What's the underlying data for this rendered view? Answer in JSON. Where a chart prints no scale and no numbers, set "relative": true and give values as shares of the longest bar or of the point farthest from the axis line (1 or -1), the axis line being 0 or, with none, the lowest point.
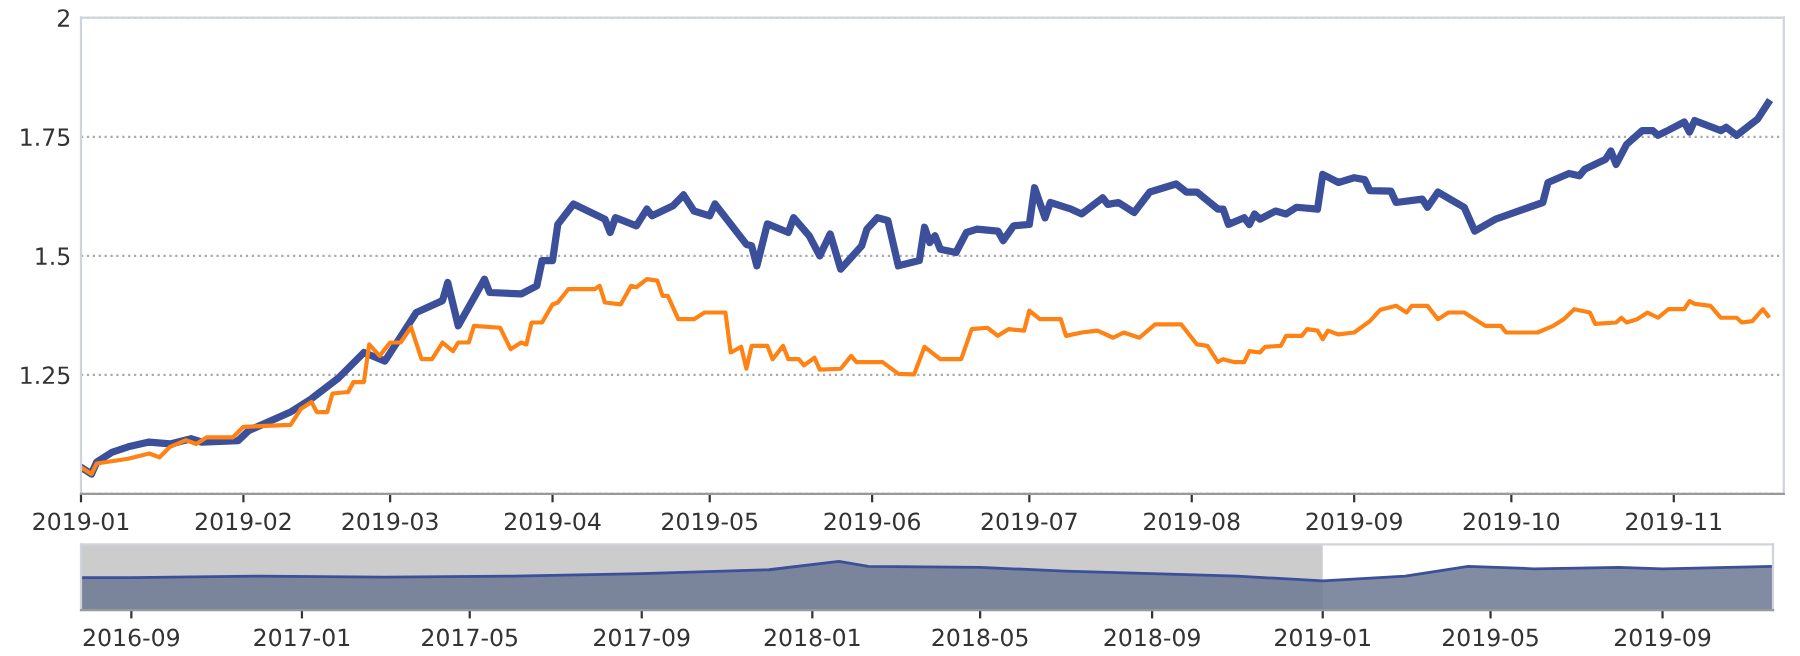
{
  "chart_data": [
    {
      "type": "line",
      "xlim": [
        "2019-01-01",
        "2019-11-22"
      ],
      "xticks": [
        "2019-01",
        "2019-02",
        "2019-03",
        "2019-04",
        "2019-05",
        "2019-06",
        "2019-07",
        "2019-08",
        "2019-09",
        "2019-10",
        "2019-11"
      ],
      "ylim": [
        1,
        2
      ],
      "yticks": [
        {
          "value": 1,
          "label": null
        },
        1.25,
        1.5,
        1.75,
        2
      ],
      "grid": "y",
      "line_style": "solid",
      "marker": "none",
      "series": [
        {
          "color": "#3c4f9a",
          "x": [
            "2019-01-01",
            "2019-01-03",
            "2019-01-04",
            "2019-01-07",
            "2019-01-10",
            "2019-01-14",
            "2019-01-18",
            "2019-01-22",
            "2019-01-24",
            "2019-01-31",
            "2019-02-02",
            "2019-02-10",
            "2019-02-14",
            "2019-02-19",
            "2019-02-24",
            "2019-02-28",
            "2019-03-06",
            "2019-03-11",
            "2019-03-12",
            "2019-03-14",
            "2019-03-19",
            "2019-03-20",
            "2019-03-26",
            "2019-03-29",
            "2019-03-30",
            "2019-04-01",
            "2019-04-02",
            "2019-04-05",
            "2019-04-11",
            "2019-04-12",
            "2019-04-13",
            "2019-04-17",
            "2019-04-19",
            "2019-04-20",
            "2019-04-24",
            "2019-04-26",
            "2019-04-28",
            "2019-05-01",
            "2019-05-02",
            "2019-05-08",
            "2019-05-09",
            "2019-05-10",
            "2019-05-12",
            "2019-05-16",
            "2019-05-17",
            "2019-05-20",
            "2019-05-22",
            "2019-05-24",
            "2019-05-26",
            "2019-05-30",
            "2019-05-31",
            "2019-06-02",
            "2019-06-04",
            "2019-06-06",
            "2019-06-10",
            "2019-06-11",
            "2019-06-12",
            "2019-06-13",
            "2019-06-14",
            "2019-06-17",
            "2019-06-19",
            "2019-06-21",
            "2019-06-25",
            "2019-06-26",
            "2019-06-28",
            "2019-07-01",
            "2019-07-02",
            "2019-07-04",
            "2019-07-05",
            "2019-07-09",
            "2019-07-11",
            "2019-07-15",
            "2019-07-16",
            "2019-07-18",
            "2019-07-21",
            "2019-07-24",
            "2019-07-29",
            "2019-07-31",
            "2019-08-02",
            "2019-08-06",
            "2019-08-07",
            "2019-08-08",
            "2019-08-11",
            "2019-08-12",
            "2019-08-13",
            "2019-08-14",
            "2019-08-17",
            "2019-08-19",
            "2019-08-21",
            "2019-08-25",
            "2019-08-26",
            "2019-08-29",
            "2019-09-01",
            "2019-09-03",
            "2019-09-04",
            "2019-09-08",
            "2019-09-09",
            "2019-09-14",
            "2019-09-15",
            "2019-09-17",
            "2019-09-22",
            "2019-09-24",
            "2019-09-28",
            "2019-10-07",
            "2019-10-08",
            "2019-10-12",
            "2019-10-14",
            "2019-10-15",
            "2019-10-19",
            "2019-10-20",
            "2019-10-21",
            "2019-10-23",
            "2019-10-26",
            "2019-10-28",
            "2019-10-29",
            "2019-10-31",
            "2019-11-03",
            "2019-11-04",
            "2019-11-05",
            "2019-11-10",
            "2019-11-11",
            "2019-11-13",
            "2019-11-17",
            "2019-11-19"
          ],
          "values": [
            1.056,
            1.042,
            1.067,
            1.088,
            1.099,
            1.109,
            1.105,
            1.116,
            1.109,
            1.112,
            1.133,
            1.172,
            1.2,
            1.242,
            1.297,
            1.279,
            1.381,
            1.406,
            1.444,
            1.353,
            1.451,
            1.423,
            1.42,
            1.437,
            1.49,
            1.49,
            1.566,
            1.609,
            1.577,
            1.549,
            1.58,
            1.563,
            1.598,
            1.584,
            1.605,
            1.628,
            1.594,
            1.584,
            1.609,
            1.524,
            1.521,
            1.479,
            1.567,
            1.549,
            1.58,
            1.542,
            1.5,
            1.546,
            1.472,
            1.521,
            1.556,
            1.58,
            1.574,
            1.479,
            1.49,
            1.56,
            1.528,
            1.542,
            1.514,
            1.507,
            1.549,
            1.556,
            1.552,
            1.532,
            1.563,
            1.566,
            1.643,
            1.58,
            1.612,
            1.598,
            1.588,
            1.622,
            1.608,
            1.612,
            1.591,
            1.634,
            1.651,
            1.634,
            1.634,
            1.598,
            1.598,
            1.566,
            1.58,
            1.566,
            1.588,
            1.577,
            1.594,
            1.588,
            1.602,
            1.598,
            1.671,
            1.654,
            1.664,
            1.66,
            1.637,
            1.636,
            1.612,
            1.619,
            1.602,
            1.634,
            1.602,
            1.552,
            1.577,
            1.612,
            1.654,
            1.673,
            1.668,
            1.682,
            1.703,
            1.72,
            1.692,
            1.734,
            1.763,
            1.763,
            1.753,
            1.764,
            1.781,
            1.76,
            1.784,
            1.763,
            1.77,
            1.753,
            1.787,
            1.821
          ]
        },
        {
          "color": "#ff8214",
          "x": [
            "2019-01-01",
            "2019-01-03",
            "2019-01-04",
            "2019-01-10",
            "2019-01-14",
            "2019-01-16",
            "2019-01-18",
            "2019-01-21",
            "2019-01-23",
            "2019-01-25",
            "2019-01-30",
            "2019-02-01",
            "2019-02-10",
            "2019-02-12",
            "2019-02-14",
            "2019-02-15",
            "2019-02-17",
            "2019-02-18",
            "2019-02-21",
            "2019-02-22",
            "2019-02-24",
            "2019-02-25",
            "2019-02-27",
            "2019-03-01",
            "2019-03-03",
            "2019-03-05",
            "2019-03-07",
            "2019-03-09",
            "2019-03-11",
            "2019-03-13",
            "2019-03-14",
            "2019-03-16",
            "2019-03-17",
            "2019-03-22",
            "2019-03-24",
            "2019-03-26",
            "2019-03-27",
            "2019-03-28",
            "2019-03-30",
            "2019-04-01",
            "2019-04-02",
            "2019-04-04",
            "2019-04-09",
            "2019-04-10",
            "2019-04-11",
            "2019-04-14",
            "2019-04-16",
            "2019-04-17",
            "2019-04-19",
            "2019-04-21",
            "2019-04-22",
            "2019-04-23",
            "2019-04-25",
            "2019-04-28",
            "2019-04-30",
            "2019-05-04",
            "2019-05-05",
            "2019-05-07",
            "2019-05-08",
            "2019-05-09",
            "2019-05-12",
            "2019-05-13",
            "2019-05-15",
            "2019-05-16",
            "2019-05-18",
            "2019-05-19",
            "2019-05-21",
            "2019-05-22",
            "2019-05-26",
            "2019-05-28",
            "2019-05-29",
            "2019-06-02",
            "2019-06-03",
            "2019-06-06",
            "2019-06-09",
            "2019-06-11",
            "2019-06-14",
            "2019-06-18",
            "2019-06-20",
            "2019-06-23",
            "2019-06-25",
            "2019-06-27",
            "2019-06-30",
            "2019-07-01",
            "2019-07-03",
            "2019-07-07",
            "2019-07-08",
            "2019-07-11",
            "2019-07-14",
            "2019-07-17",
            "2019-07-19",
            "2019-07-22",
            "2019-07-25",
            "2019-07-30",
            "2019-08-02",
            "2019-08-04",
            "2019-08-06",
            "2019-08-07",
            "2019-08-09",
            "2019-08-11",
            "2019-08-12",
            "2019-08-14",
            "2019-08-15",
            "2019-08-18",
            "2019-08-19",
            "2019-08-22",
            "2019-08-23",
            "2019-08-25",
            "2019-08-26",
            "2019-08-27",
            "2019-08-29",
            "2019-09-01",
            "2019-09-04",
            "2019-09-06",
            "2019-09-09",
            "2019-09-11",
            "2019-09-12",
            "2019-09-15",
            "2019-09-17",
            "2019-09-19",
            "2019-09-22",
            "2019-09-26",
            "2019-09-29",
            "2019-09-30",
            "2019-10-06",
            "2019-10-09",
            "2019-10-11",
            "2019-10-13",
            "2019-10-16",
            "2019-10-17",
            "2019-10-21",
            "2019-10-22",
            "2019-10-23",
            "2019-10-25",
            "2019-10-27",
            "2019-10-29",
            "2019-10-31",
            "2019-11-03",
            "2019-11-04",
            "2019-11-05",
            "2019-11-08",
            "2019-11-10",
            "2019-11-13",
            "2019-11-14",
            "2019-11-16",
            "2019-11-18",
            "2019-11-19"
          ],
          "values": [
            1.056,
            1.042,
            1.064,
            1.074,
            1.085,
            1.077,
            1.099,
            1.113,
            1.105,
            1.119,
            1.119,
            1.141,
            1.145,
            1.179,
            1.193,
            1.172,
            1.172,
            1.211,
            1.214,
            1.235,
            1.235,
            1.314,
            1.29,
            1.318,
            1.318,
            1.35,
            1.283,
            1.283,
            1.318,
            1.3,
            1.318,
            1.318,
            1.353,
            1.349,
            1.304,
            1.318,
            1.314,
            1.36,
            1.36,
            1.398,
            1.402,
            1.43,
            1.43,
            1.437,
            1.402,
            1.398,
            1.437,
            1.434,
            1.451,
            1.448,
            1.416,
            1.416,
            1.367,
            1.367,
            1.381,
            1.381,
            1.297,
            1.309,
            1.263,
            1.311,
            1.311,
            1.283,
            1.311,
            1.283,
            1.283,
            1.27,
            1.286,
            1.261,
            1.263,
            1.29,
            1.277,
            1.277,
            1.277,
            1.252,
            1.251,
            1.309,
            1.283,
            1.283,
            1.346,
            1.349,
            1.332,
            1.346,
            1.343,
            1.385,
            1.367,
            1.367,
            1.332,
            1.339,
            1.343,
            1.328,
            1.339,
            1.328,
            1.356,
            1.356,
            1.314,
            1.311,
            1.277,
            1.283,
            1.277,
            1.277,
            1.3,
            1.297,
            1.309,
            1.311,
            1.332,
            1.332,
            1.346,
            1.343,
            1.325,
            1.343,
            1.335,
            1.339,
            1.363,
            1.387,
            1.395,
            1.381,
            1.395,
            1.395,
            1.367,
            1.381,
            1.381,
            1.353,
            1.353,
            1.339,
            1.339,
            1.353,
            1.367,
            1.388,
            1.381,
            1.357,
            1.36,
            1.37,
            1.36,
            1.367,
            1.381,
            1.37,
            1.388,
            1.388,
            1.405,
            1.399,
            1.395,
            1.37,
            1.37,
            1.36,
            1.363,
            1.388,
            1.374
          ]
        }
      ]
    },
    {
      "type": "area",
      "relative": true,
      "tick_labels": "x",
      "xlim": [
        "2016-07-27",
        "2019-11-19"
      ],
      "xticks": [
        "2016-09",
        "2017-01",
        "2017-05",
        "2017-09",
        "2018-01",
        "2018-05",
        "2018-09",
        "2019-01",
        "2019-05",
        "2019-09"
      ],
      "bands": [
        {
          "axis": "x",
          "from": "2016-07-27",
          "to": "2019-01-01",
          "color": "#cccccc"
        }
      ],
      "series": [
        {
          "color": "#3c4f9a",
          "x": [
            "2016-07-27",
            "2016-09-01",
            "2016-12-01",
            "2017-03-01",
            "2017-06-01",
            "2017-09-01",
            "2017-12-01",
            "2018-01-20",
            "2018-02-10",
            "2018-05-01",
            "2018-07-01",
            "2018-09-01",
            "2018-11-01",
            "2019-01-01",
            "2019-03-01",
            "2019-04-15",
            "2019-06-01",
            "2019-08-01",
            "2019-09-01",
            "2019-11-19"
          ],
          "values": [
            0.67,
            0.67,
            0.7,
            0.68,
            0.7,
            0.75,
            0.83,
            1.0,
            0.9,
            0.88,
            0.8,
            0.75,
            0.7,
            0.6,
            0.7,
            0.9,
            0.85,
            0.88,
            0.85,
            0.9
          ]
        }
      ]
    }
  ]
}
